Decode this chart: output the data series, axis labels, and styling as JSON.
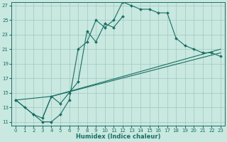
{
  "xlabel": "Humidex (Indice chaleur)",
  "xlim": [
    -0.5,
    23.5
  ],
  "ylim": [
    10.5,
    27.5
  ],
  "yticks": [
    11,
    13,
    15,
    17,
    19,
    21,
    23,
    25,
    27
  ],
  "xticks": [
    0,
    1,
    2,
    3,
    4,
    5,
    6,
    7,
    8,
    9,
    10,
    11,
    12,
    13,
    14,
    15,
    16,
    17,
    18,
    19,
    20,
    21,
    22,
    23
  ],
  "bg_color": "#c8e8e0",
  "grid_color": "#a0c8c0",
  "line_color": "#1a6e64",
  "curve1_x": [
    0,
    1,
    2,
    3,
    4,
    5,
    6,
    7,
    8,
    9,
    10,
    11,
    12,
    13,
    14,
    15,
    16,
    17,
    18,
    19,
    20,
    21,
    22,
    23
  ],
  "curve1_y": [
    14,
    13,
    12,
    11,
    11,
    12,
    14,
    21,
    22,
    25,
    24,
    25,
    27.5,
    27,
    26.5,
    26.5,
    26,
    26,
    22.5,
    21.5,
    21,
    20.5,
    20.5,
    20
  ],
  "curve2_x": [
    0,
    2,
    3,
    4,
    5,
    6,
    7,
    8,
    9,
    10,
    11,
    12
  ],
  "curve2_y": [
    14,
    12,
    11.5,
    14.5,
    13.5,
    15,
    16.5,
    23.5,
    22,
    24.5,
    24,
    25.5
  ],
  "line1_x": [
    0,
    4,
    23
  ],
  "line1_y": [
    14,
    14.5,
    21
  ],
  "line2_x": [
    3,
    4,
    23
  ],
  "line2_y": [
    11.5,
    14.5,
    20.5
  ]
}
